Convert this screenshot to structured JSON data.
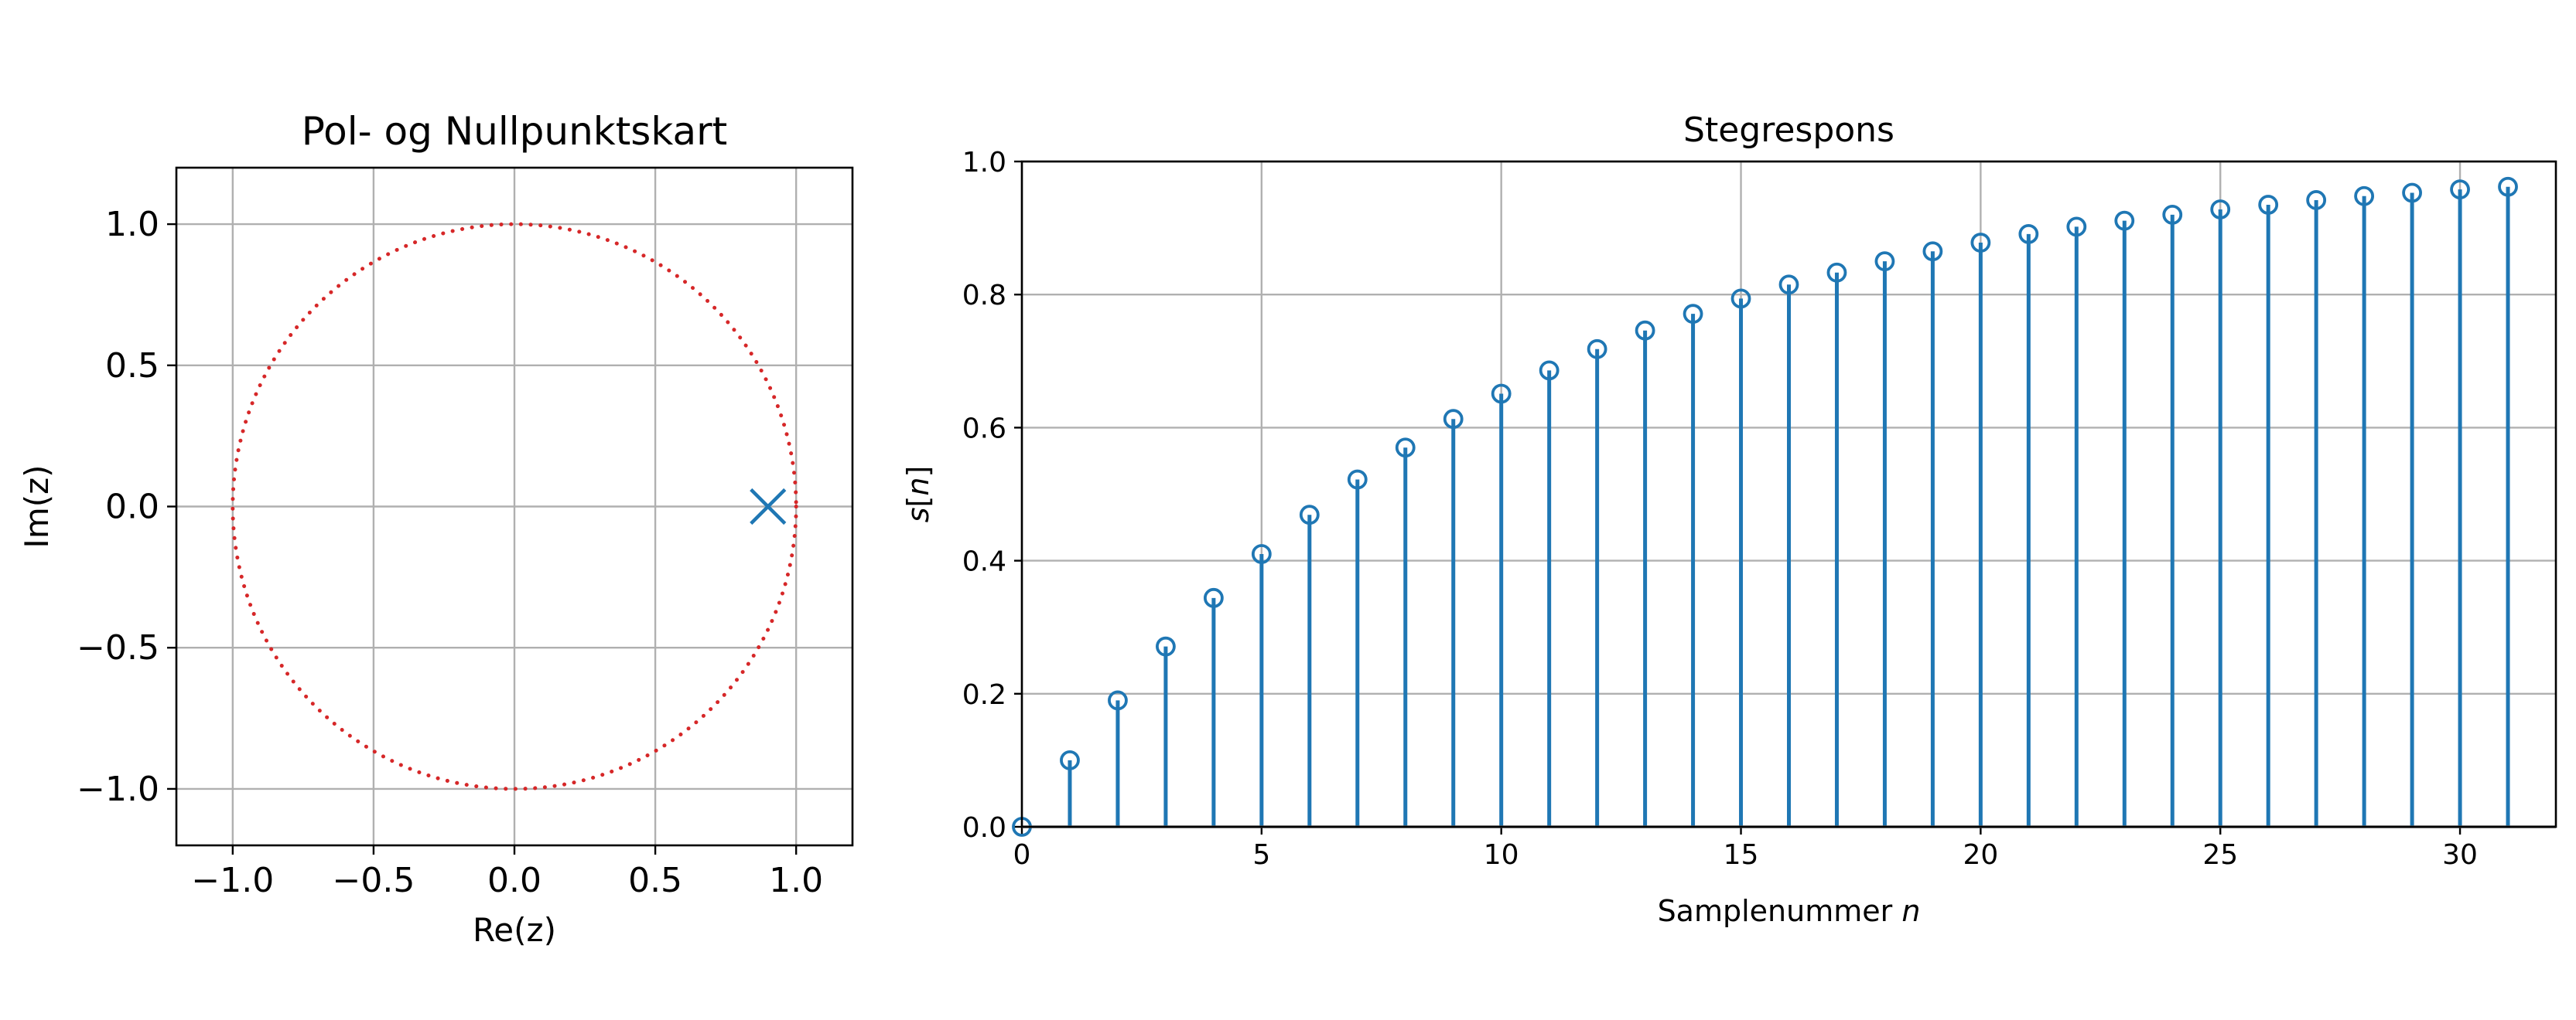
{
  "chart_data": [
    {
      "type": "scatter",
      "title": "Pol- og Nullpunktskart",
      "xlabel": "Re(z)",
      "ylabel": "Im(z)",
      "xlim": [
        -1.2,
        1.2
      ],
      "ylim": [
        -1.2,
        1.2
      ],
      "xticks": [
        -1.0,
        -0.5,
        0.0,
        0.5,
        1.0
      ],
      "yticks": [
        -1.0,
        -0.5,
        0.0,
        0.5,
        1.0
      ],
      "xtick_labels": [
        "−1.0",
        "−0.5",
        "0.0",
        "0.5",
        "1.0"
      ],
      "ytick_labels": [
        "−1.0",
        "−0.5",
        "0.0",
        "0.5",
        "1.0"
      ],
      "grid": true,
      "unit_circle": {
        "radius": 1.0,
        "style": "dotted",
        "color": "#d62728"
      },
      "poles": [
        {
          "re": 0.9,
          "im": 0.0
        }
      ],
      "pole_color": "#1f77b4"
    },
    {
      "type": "stem",
      "title": "Stegrespons",
      "xlabel": "Samplenummer n",
      "ylabel": "s[n]",
      "xlim": [
        0,
        32
      ],
      "ylim": [
        0,
        1.0
      ],
      "xticks": [
        0,
        5,
        10,
        15,
        20,
        25,
        30
      ],
      "yticks": [
        0.0,
        0.2,
        0.4,
        0.6,
        0.8,
        1.0
      ],
      "xtick_labels": [
        "0",
        "5",
        "10",
        "15",
        "20",
        "25",
        "30"
      ],
      "ytick_labels": [
        "0.0",
        "0.2",
        "0.4",
        "0.6",
        "0.8",
        "1.0"
      ],
      "grid": true,
      "color": "#1f77b4",
      "x": [
        0,
        1,
        2,
        3,
        4,
        5,
        6,
        7,
        8,
        9,
        10,
        11,
        12,
        13,
        14,
        15,
        16,
        17,
        18,
        19,
        20,
        21,
        22,
        23,
        24,
        25,
        26,
        27,
        28,
        29,
        30,
        31
      ],
      "values": [
        0.0,
        0.1,
        0.19,
        0.271,
        0.344,
        0.41,
        0.469,
        0.522,
        0.57,
        0.613,
        0.651,
        0.686,
        0.718,
        0.746,
        0.771,
        0.794,
        0.815,
        0.833,
        0.85,
        0.865,
        0.878,
        0.891,
        0.902,
        0.911,
        0.92,
        0.928,
        0.935,
        0.942,
        0.948,
        0.953,
        0.958,
        0.962
      ]
    }
  ]
}
